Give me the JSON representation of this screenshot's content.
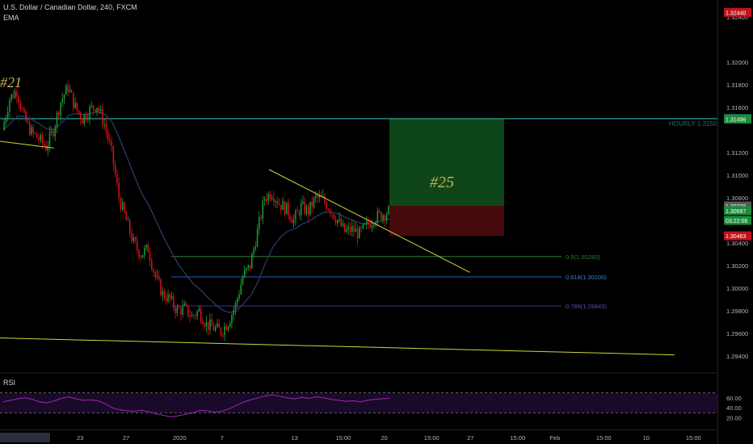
{
  "header": {
    "symbol_title": "U.S. Dollar / Canadian Dollar, 240, FXCM",
    "indicator_label": "EMA"
  },
  "annotations": {
    "previous_idea": "#21",
    "current_idea": "#25",
    "hourly_level": "HOURLY 1.3150"
  },
  "fib_levels": [
    {
      "label": "0.5(1.30280)",
      "price": 1.3028,
      "color": "#2e7d32"
    },
    {
      "label": "0.618(1.30100)",
      "price": 1.301,
      "color": "#1e5fb4"
    },
    {
      "label": "0.786(1.29843)",
      "price": 1.29843,
      "color": "#3a2f8a"
    }
  ],
  "price_tags": [
    {
      "label": "1.32440",
      "price": 1.3244,
      "bg": "#c0121d",
      "fg": "#ffffff"
    },
    {
      "label": "1.31500",
      "price": 1.315,
      "bg": "#26a69a",
      "fg": "#0b2b28"
    },
    {
      "label": "1.31496",
      "price": 1.31496,
      "bg": "#1b8c3a",
      "fg": "#ffffff"
    },
    {
      "label": "1.30728",
      "price": 1.30728,
      "bg": "#5a5a5a",
      "fg": "#ffffff"
    },
    {
      "label": "1.30687",
      "price": 1.30687,
      "bg": "#1b8c3a",
      "fg": "#ffffff"
    },
    {
      "label": "03:22:08",
      "price": 1.306,
      "bg": "#1b8c3a",
      "fg": "#ffffff"
    },
    {
      "label": "1.30463",
      "price": 1.30463,
      "bg": "#c0121d",
      "fg": "#ffffff"
    }
  ],
  "rsi": {
    "label": "RSI",
    "upper": 70,
    "lower": 30,
    "ticks": [
      "60.00",
      "40.00",
      "20.00"
    ],
    "tick_values": [
      60,
      40,
      20
    ],
    "color": "#9c27b0"
  },
  "colors": {
    "bull": "#26a69a",
    "bear": "#ef5350",
    "bull_candle": "#1fa23a",
    "bear_candle": "#e0121d",
    "trendline": "#d4d43a",
    "ema": "#2a3a66",
    "hourly_line": "#26a69a",
    "target_zone": "#0f4a1a",
    "stop_zone": "#4a0a0e",
    "rsi_band": "#1a0a2a"
  },
  "chart_data": {
    "type": "candlestick",
    "title": "U.S. Dollar / Canadian Dollar, 240, FXCM",
    "y_ticks": [
      "1.32400",
      "1.32000",
      "1.31800",
      "1.31600",
      "1.31200",
      "1.31000",
      "1.30800",
      "1.30400",
      "1.30200",
      "1.30000",
      "1.29800",
      "1.29600",
      "1.29400"
    ],
    "y_tick_values": [
      1.324,
      1.32,
      1.318,
      1.316,
      1.312,
      1.31,
      1.308,
      1.304,
      1.302,
      1.3,
      1.298,
      1.296,
      1.294
    ],
    "ylim": [
      1.2925,
      1.3255
    ],
    "x_ticks": [
      "15:00",
      "23",
      "27",
      "2020",
      "7",
      "13",
      "15:00",
      "20",
      "15:00",
      "27",
      "15:00",
      "Feb",
      "15:00",
      "10",
      "15:00"
    ],
    "x_tick_positions": [
      0.055,
      0.116,
      0.18,
      0.25,
      0.316,
      0.415,
      0.477,
      0.54,
      0.6,
      0.66,
      0.72,
      0.775,
      0.84,
      0.905,
      0.965
    ],
    "price_path": [
      1.314,
      1.3168,
      1.3175,
      1.315,
      1.3138,
      1.3132,
      1.3125,
      1.314,
      1.3165,
      1.3178,
      1.316,
      1.315,
      1.3158,
      1.3162,
      1.3145,
      1.312,
      1.308,
      1.306,
      1.304,
      1.303,
      1.3035,
      1.301,
      1.2995,
      1.299,
      1.298,
      1.2982,
      1.2975,
      1.298,
      1.2968,
      1.2965,
      1.2962,
      1.297,
      1.2985,
      1.301,
      1.302,
      1.305,
      1.308,
      1.3085,
      1.3075,
      1.307,
      1.306,
      1.3072,
      1.3068,
      1.308,
      1.3078,
      1.307,
      1.306,
      1.305,
      1.3052,
      1.3048,
      1.3055,
      1.3062,
      1.3065,
      1.3068
    ],
    "trendlines": [
      {
        "from": [
          0.0,
          1.313
        ],
        "to": [
          0.075,
          1.3124
        ]
      },
      {
        "from": [
          0.375,
          1.3105
        ],
        "to": [
          0.655,
          1.3014
        ]
      },
      {
        "from": [
          0.0,
          1.2956
        ],
        "to": [
          0.94,
          1.2941
        ]
      }
    ],
    "rsi_series": [
      52,
      55,
      58,
      60,
      57,
      52,
      50,
      54,
      59,
      62,
      58,
      55,
      56,
      54,
      48,
      40,
      36,
      34,
      33,
      35,
      32,
      28,
      25,
      22,
      24,
      27,
      30,
      35,
      34,
      31,
      33,
      38,
      45,
      52,
      56,
      60,
      64,
      66,
      63,
      60,
      58,
      61,
      59,
      62,
      60,
      57,
      55,
      53,
      54,
      52,
      55,
      57,
      58,
      59
    ]
  }
}
